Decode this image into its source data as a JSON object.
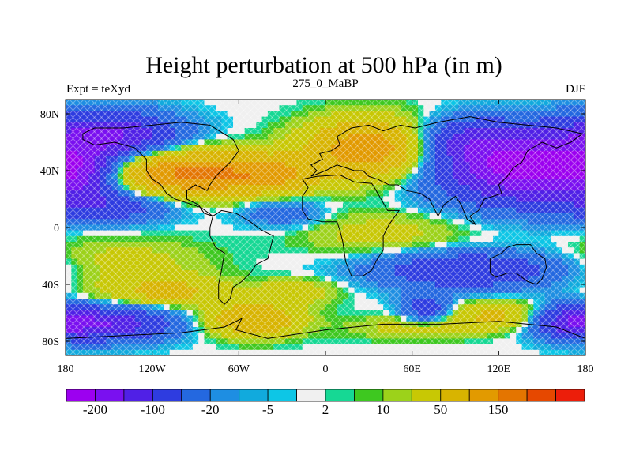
{
  "title": "Height perturbation at 500 hPa (in m)",
  "left_label": "Expt = teXyd",
  "center_label": "275_0_MaBP",
  "right_label": "DJF",
  "map": {
    "lon_range": [
      -180,
      180
    ],
    "lat_range": [
      -90,
      90
    ],
    "lon_ticks": [
      {
        "value": -180,
        "label": "180"
      },
      {
        "value": -120,
        "label": "120W"
      },
      {
        "value": -60,
        "label": "60W"
      },
      {
        "value": 0,
        "label": "0"
      },
      {
        "value": 60,
        "label": "60E"
      },
      {
        "value": 120,
        "label": "120E"
      },
      {
        "value": 180,
        "label": "180"
      }
    ],
    "lat_ticks": [
      {
        "value": 80,
        "label": "80N"
      },
      {
        "value": 40,
        "label": "40N"
      },
      {
        "value": 0,
        "label": "0"
      },
      {
        "value": -40,
        "label": "40S"
      },
      {
        "value": -80,
        "label": "80S"
      }
    ],
    "fill": "filled contours with cross-hatch (diamond) stipple",
    "anomaly_centers": [
      {
        "lon": -150,
        "lat": 65,
        "amp": -150,
        "slon": 32,
        "slat": 11
      },
      {
        "lon": -170,
        "lat": 38,
        "amp": -100,
        "slon": 16,
        "slat": 12
      },
      {
        "lon": -100,
        "lat": 38,
        "amp": 160,
        "slon": 35,
        "slat": 11
      },
      {
        "lon": -40,
        "lat": 37,
        "amp": 100,
        "slon": 24,
        "slat": 9
      },
      {
        "lon": 30,
        "lat": 55,
        "amp": 140,
        "slon": 30,
        "slat": 14
      },
      {
        "lon": 140,
        "lat": 42,
        "amp": -230,
        "slon": 42,
        "slat": 17
      },
      {
        "lon": 100,
        "lat": 62,
        "amp": -80,
        "slon": 25,
        "slat": 10
      },
      {
        "lon": -150,
        "lat": 15,
        "amp": -80,
        "slon": 30,
        "slat": 8
      },
      {
        "lon": -30,
        "lat": 10,
        "amp": -40,
        "slon": 20,
        "slat": 7
      },
      {
        "lon": 40,
        "lat": -4,
        "amp": 30,
        "slon": 40,
        "slat": 10
      },
      {
        "lon": -140,
        "lat": -25,
        "amp": 30,
        "slon": 40,
        "slat": 12
      },
      {
        "lon": -110,
        "lat": -45,
        "amp": 60,
        "slon": 30,
        "slat": 7
      },
      {
        "lon": 100,
        "lat": -30,
        "amp": -100,
        "slon": 45,
        "slat": 9
      },
      {
        "lon": 70,
        "lat": -57,
        "amp": -80,
        "slon": 12,
        "slat": 7
      },
      {
        "lon": -50,
        "lat": -65,
        "amp": 100,
        "slon": 22,
        "slat": 8
      },
      {
        "lon": -155,
        "lat": -68,
        "amp": -150,
        "slon": 32,
        "slat": 8
      },
      {
        "lon": 170,
        "lat": -65,
        "amp": -90,
        "slon": 18,
        "slat": 8
      },
      {
        "lon": 120,
        "lat": -62,
        "amp": 60,
        "slon": 25,
        "slat": 7
      },
      {
        "lon": 60,
        "lat": -70,
        "amp": 30,
        "slon": 30,
        "slat": 6
      },
      {
        "lon": -20,
        "lat": -45,
        "amp": 40,
        "slon": 20,
        "slat": 6
      }
    ]
  },
  "colorbar": {
    "colors": [
      "#9c00f0",
      "#7a10f0",
      "#5020e6",
      "#2e3ce0",
      "#2468e0",
      "#1e8ee2",
      "#11aadd",
      "#0dc6e6",
      "#f0f0f0",
      "#16d894",
      "#3ec820",
      "#9cd21a",
      "#c8c804",
      "#d8b400",
      "#e29a00",
      "#e47500",
      "#e64800",
      "#ec1e0a"
    ],
    "boundaries": [
      -250,
      -200,
      -150,
      -100,
      -50,
      -20,
      -10,
      -5,
      -2,
      2,
      5,
      10,
      20,
      50,
      100,
      150,
      200,
      250
    ],
    "labels": [
      "-200",
      "-100",
      "-20",
      "-5",
      "2",
      "10",
      "50",
      "150"
    ]
  }
}
